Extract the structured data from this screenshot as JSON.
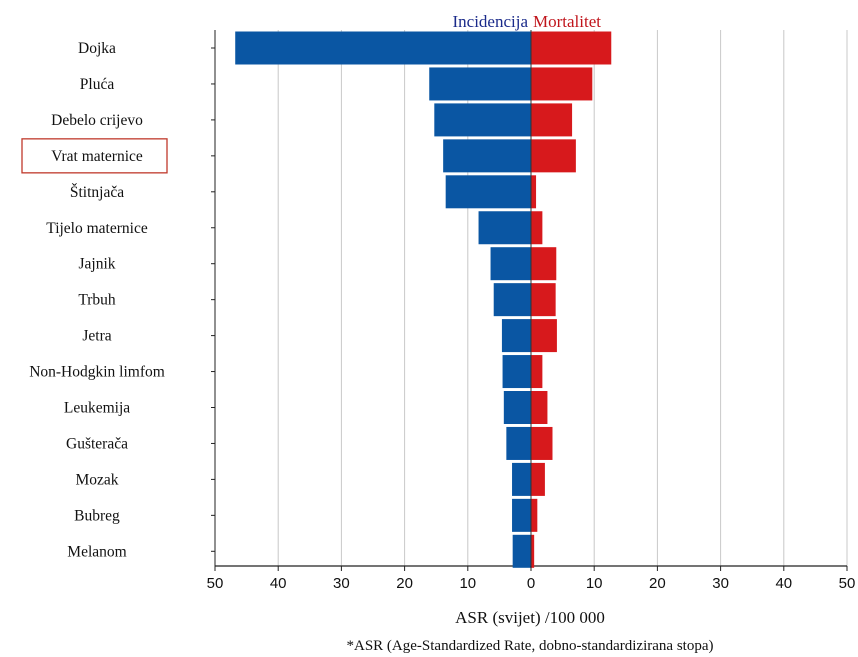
{
  "chart_data": {
    "type": "bar",
    "categories": [
      "Dojka",
      "Pluća",
      "Debelo crijevo",
      "Vrat maternice",
      "Štitnjača",
      "Tijelo maternice",
      "Jajnik",
      "Trbuh",
      "Jetra",
      "Non-Hodgkin limfom",
      "Leukemija",
      "Gušterača",
      "Mozak",
      "Bubreg",
      "Melanom"
    ],
    "series": [
      {
        "name": "Incidencija",
        "color": "#0a56a3",
        "values": [
          46.8,
          16.1,
          15.3,
          13.9,
          13.5,
          8.3,
          6.4,
          5.9,
          4.6,
          4.5,
          4.3,
          3.9,
          3.0,
          3.0,
          2.9
        ]
      },
      {
        "name": "Mortalitet",
        "color": "#d7191c",
        "values": [
          12.7,
          9.7,
          6.5,
          7.1,
          0.8,
          1.8,
          4.0,
          3.9,
          4.1,
          1.8,
          2.6,
          3.4,
          2.2,
          1.0,
          0.5
        ]
      }
    ],
    "xticks": [
      "50",
      "40",
      "30",
      "20",
      "10",
      "0",
      "10",
      "20",
      "30",
      "40",
      "50"
    ],
    "xlim": [
      -50,
      50
    ],
    "xlabel": "ASR (svijet) /100 000",
    "footnote": "*ASR (Age-Standardized Rate, dobno-standardizirana stopa)",
    "highlighted_category": "Vrat maternice",
    "highlight_color": "#c0392b",
    "grid": true,
    "legend_position": "top-center"
  }
}
